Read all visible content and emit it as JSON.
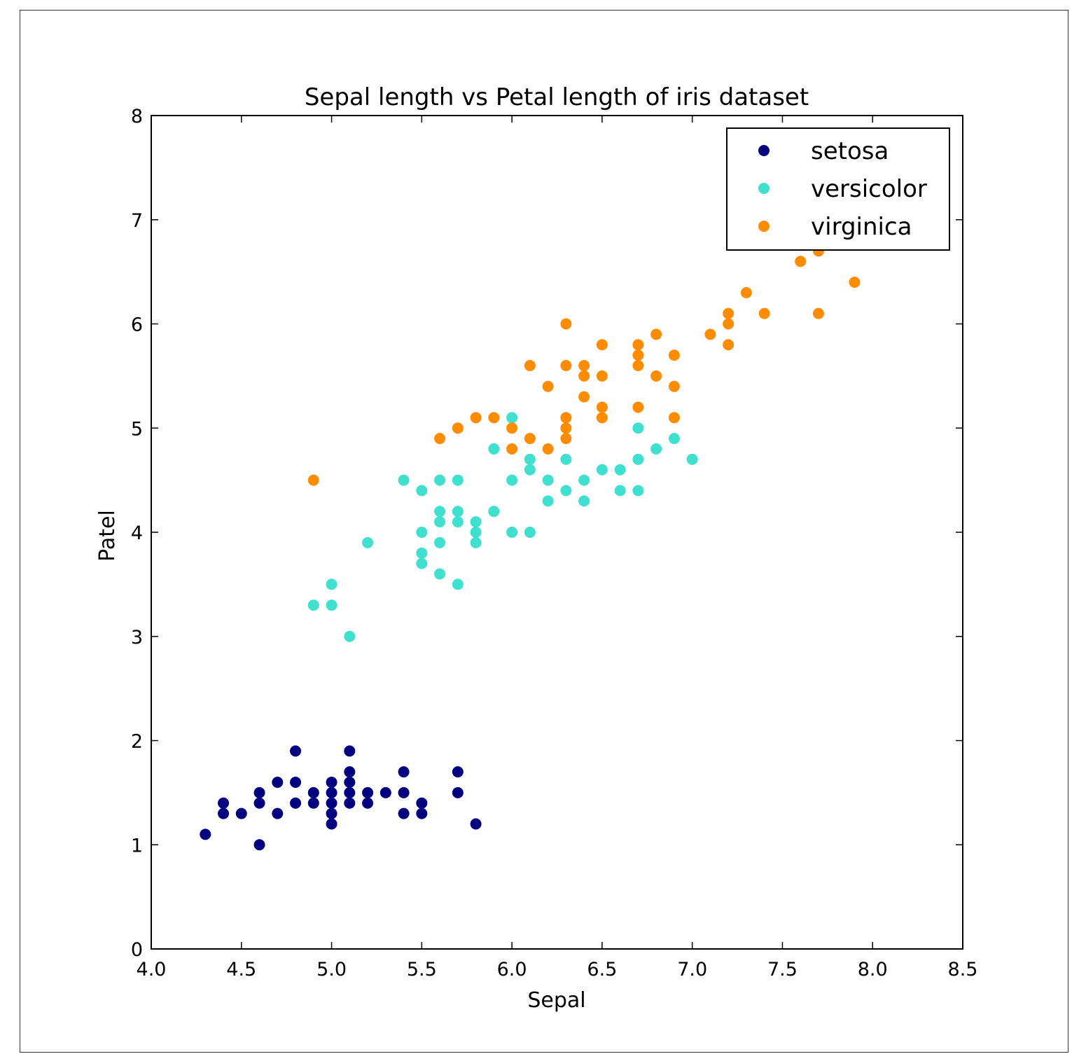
{
  "chart_data": {
    "type": "scatter",
    "title": "Sepal length vs Petal length of iris dataset",
    "xlabel": "Sepal",
    "ylabel": "Patel",
    "xlim": [
      4.0,
      8.5
    ],
    "ylim": [
      0,
      8
    ],
    "xticks": [
      "4.0",
      "4.5",
      "5.0",
      "5.5",
      "6.0",
      "6.5",
      "7.0",
      "7.5",
      "8.0",
      "8.5"
    ],
    "yticks": [
      "0",
      "1",
      "2",
      "3",
      "4",
      "5",
      "6",
      "7",
      "8"
    ],
    "legend_position": "top-right",
    "series": [
      {
        "name": "setosa",
        "color": "#000080",
        "points": [
          [
            4.3,
            1.1
          ],
          [
            4.4,
            1.3
          ],
          [
            4.4,
            1.4
          ],
          [
            4.5,
            1.3
          ],
          [
            4.6,
            1.0
          ],
          [
            4.6,
            1.4
          ],
          [
            4.6,
            1.5
          ],
          [
            4.7,
            1.3
          ],
          [
            4.7,
            1.6
          ],
          [
            4.8,
            1.4
          ],
          [
            4.8,
            1.6
          ],
          [
            4.8,
            1.9
          ],
          [
            4.9,
            1.4
          ],
          [
            4.9,
            1.5
          ],
          [
            5.0,
            1.2
          ],
          [
            5.0,
            1.3
          ],
          [
            5.0,
            1.4
          ],
          [
            5.0,
            1.5
          ],
          [
            5.0,
            1.6
          ],
          [
            5.1,
            1.4
          ],
          [
            5.1,
            1.5
          ],
          [
            5.1,
            1.6
          ],
          [
            5.1,
            1.7
          ],
          [
            5.1,
            1.9
          ],
          [
            5.2,
            1.4
          ],
          [
            5.2,
            1.5
          ],
          [
            5.3,
            1.5
          ],
          [
            5.4,
            1.3
          ],
          [
            5.4,
            1.5
          ],
          [
            5.4,
            1.7
          ],
          [
            5.5,
            1.3
          ],
          [
            5.5,
            1.4
          ],
          [
            5.7,
            1.5
          ],
          [
            5.7,
            1.7
          ],
          [
            5.8,
            1.2
          ]
        ]
      },
      {
        "name": "versicolor",
        "color": "#40E0D0",
        "points": [
          [
            4.9,
            3.3
          ],
          [
            5.0,
            3.3
          ],
          [
            5.0,
            3.5
          ],
          [
            5.1,
            3.0
          ],
          [
            5.2,
            3.9
          ],
          [
            5.4,
            4.5
          ],
          [
            5.5,
            3.7
          ],
          [
            5.5,
            3.8
          ],
          [
            5.5,
            4.0
          ],
          [
            5.5,
            4.4
          ],
          [
            5.6,
            3.6
          ],
          [
            5.6,
            3.9
          ],
          [
            5.6,
            4.1
          ],
          [
            5.6,
            4.2
          ],
          [
            5.6,
            4.5
          ],
          [
            5.7,
            3.5
          ],
          [
            5.7,
            4.1
          ],
          [
            5.7,
            4.2
          ],
          [
            5.7,
            4.5
          ],
          [
            5.8,
            3.9
          ],
          [
            5.8,
            4.0
          ],
          [
            5.8,
            4.1
          ],
          [
            5.9,
            4.2
          ],
          [
            5.9,
            4.8
          ],
          [
            6.0,
            4.0
          ],
          [
            6.0,
            4.5
          ],
          [
            6.0,
            5.1
          ],
          [
            6.1,
            4.0
          ],
          [
            6.1,
            4.6
          ],
          [
            6.1,
            4.7
          ],
          [
            6.2,
            4.3
          ],
          [
            6.2,
            4.5
          ],
          [
            6.3,
            4.4
          ],
          [
            6.3,
            4.7
          ],
          [
            6.4,
            4.3
          ],
          [
            6.4,
            4.5
          ],
          [
            6.5,
            4.6
          ],
          [
            6.6,
            4.4
          ],
          [
            6.6,
            4.6
          ],
          [
            6.7,
            4.4
          ],
          [
            6.7,
            4.7
          ],
          [
            6.7,
            5.0
          ],
          [
            6.8,
            4.8
          ],
          [
            6.9,
            4.9
          ],
          [
            7.0,
            4.7
          ]
        ]
      },
      {
        "name": "virginica",
        "color": "#FF8C00",
        "points": [
          [
            4.9,
            4.5
          ],
          [
            5.6,
            4.9
          ],
          [
            5.7,
            5.0
          ],
          [
            5.8,
            5.1
          ],
          [
            5.9,
            5.1
          ],
          [
            6.0,
            4.8
          ],
          [
            6.0,
            5.0
          ],
          [
            6.1,
            4.9
          ],
          [
            6.1,
            5.6
          ],
          [
            6.2,
            4.8
          ],
          [
            6.2,
            5.4
          ],
          [
            6.3,
            4.9
          ],
          [
            6.3,
            5.0
          ],
          [
            6.3,
            5.1
          ],
          [
            6.3,
            5.6
          ],
          [
            6.3,
            6.0
          ],
          [
            6.4,
            5.3
          ],
          [
            6.4,
            5.5
          ],
          [
            6.4,
            5.6
          ],
          [
            6.5,
            5.1
          ],
          [
            6.5,
            5.2
          ],
          [
            6.5,
            5.5
          ],
          [
            6.5,
            5.8
          ],
          [
            6.7,
            5.2
          ],
          [
            6.7,
            5.6
          ],
          [
            6.7,
            5.7
          ],
          [
            6.7,
            5.8
          ],
          [
            6.8,
            5.5
          ],
          [
            6.8,
            5.9
          ],
          [
            6.9,
            5.1
          ],
          [
            6.9,
            5.4
          ],
          [
            6.9,
            5.7
          ],
          [
            7.1,
            5.9
          ],
          [
            7.2,
            5.8
          ],
          [
            7.2,
            6.0
          ],
          [
            7.2,
            6.1
          ],
          [
            7.3,
            6.3
          ],
          [
            7.4,
            6.1
          ],
          [
            7.6,
            6.6
          ],
          [
            7.7,
            6.1
          ],
          [
            7.7,
            6.7
          ],
          [
            7.9,
            6.4
          ],
          [
            7.7,
            6.9
          ]
        ]
      }
    ]
  }
}
